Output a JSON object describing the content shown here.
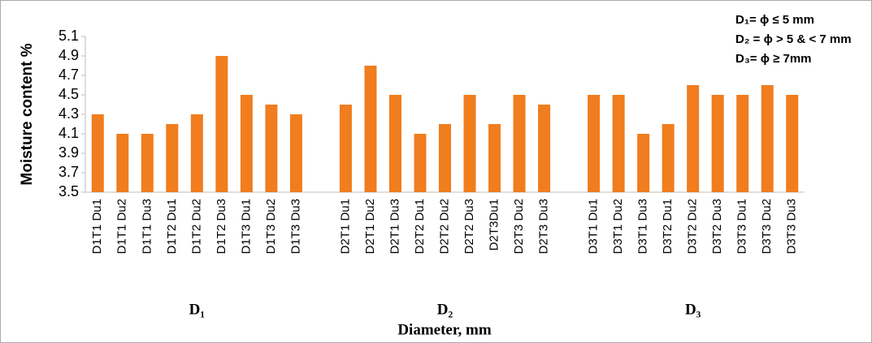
{
  "chart_data": {
    "type": "bar",
    "y_label": "Moisture content %",
    "x_label": "Diameter, mm",
    "legend_lines": [
      "D₁= ϕ ≤ 5 mm",
      "D₂ = ϕ > 5 & < 7 mm",
      "D₃= ϕ ≥ 7mm"
    ],
    "groups": [
      "D₁",
      "D₂",
      "D₃"
    ],
    "categories": [
      "D1T1 Du1",
      "D1T1 Du2",
      "D1T1 Du3",
      "D1T2 Du1",
      "D1T2 Du2",
      "D1T2 Du3",
      "D1T3 Du1",
      "D1T3 Du2",
      "D1T3 Du3",
      null,
      "D2T1 Du1",
      "D2T1 Du2",
      "D2T1 Du3",
      "D2T2 Du1",
      "D2T2 Du2",
      "D2T2 Du3",
      "D2T3Du1",
      "D2T3 Du2",
      "D2T3 Du3",
      null,
      "D3T1 Du1",
      "D3T1 Du2",
      "D3T1 Du3",
      "D3T2 Du1",
      "D3T2 Du2",
      "D3T2 Du3",
      "D3T3 Du1",
      "D3T3 Du2",
      "D3T3 Du3"
    ],
    "values": [
      4.3,
      4.1,
      4.1,
      4.2,
      4.3,
      4.9,
      4.5,
      4.4,
      4.3,
      null,
      4.4,
      4.8,
      4.5,
      4.1,
      4.2,
      4.5,
      4.2,
      4.5,
      4.4,
      null,
      4.5,
      4.5,
      4.1,
      4.2,
      4.6,
      4.5,
      4.5,
      4.6,
      4.5
    ],
    "color": "#f07d1e",
    "ylim": [
      3.5,
      5.1
    ],
    "yticks": [
      3.5,
      3.7,
      3.9,
      4.1,
      4.3,
      4.5,
      4.7,
      4.9,
      5.1
    ]
  }
}
